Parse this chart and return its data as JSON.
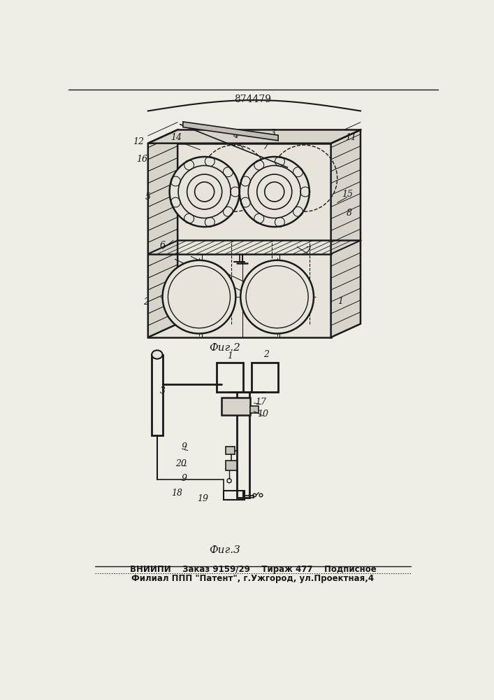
{
  "patent_number": "874479",
  "fig2_label": "Фиг.2",
  "fig3_label": "Фиг.3",
  "footer_line1": "ВНИИПИ    Заказ 9159/29    Тираж 477    Подписное",
  "footer_line2": "Филиал ППП \"Патент\", г.Ужгород, ул.Проектная,4",
  "bg_color": "#f0ede6",
  "line_color": "#1a1a1a"
}
